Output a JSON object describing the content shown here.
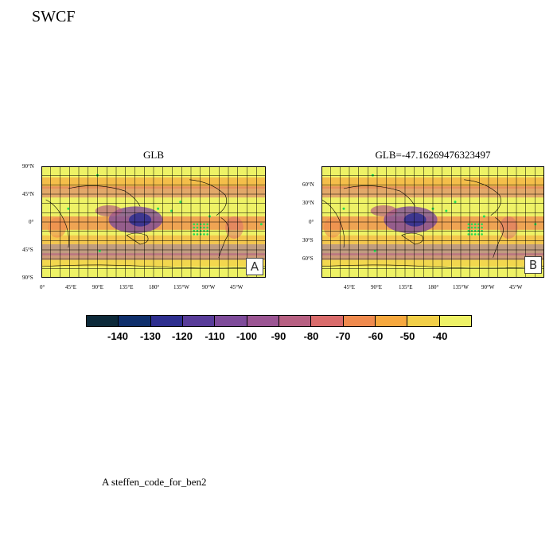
{
  "title": "SWCF",
  "panels": [
    {
      "title": "GLB",
      "letter": "A",
      "lat_ticks": [
        "90°N",
        "45°N",
        "0°",
        "45°S",
        "90°S"
      ],
      "lon_ticks": [
        "0°",
        "45°E",
        "90°E",
        "135°E",
        "180°",
        "135°W",
        "90°W",
        "45°W"
      ]
    },
    {
      "title": "GLB=-47.16269476323497",
      "letter": "B",
      "lat_ticks": [
        "60°N",
        "30°N",
        "0°",
        "30°S",
        "60°S"
      ],
      "lon_ticks": [
        "45°E",
        "90°E",
        "135°E",
        "180°",
        "135°W",
        "90°W",
        "45°W"
      ]
    }
  ],
  "colorbar": {
    "labels": [
      "-140",
      "-130",
      "-120",
      "-110",
      "-100",
      "-90",
      "-80",
      "-70",
      "-60",
      "-50",
      "-40"
    ],
    "colors": [
      "#0d2a3a",
      "#0f2f6b",
      "#2e2f8f",
      "#583c99",
      "#7e4b9a",
      "#9b5593",
      "#b76082",
      "#d96b6b",
      "#ef8a4e",
      "#f6a83e",
      "#f2cf48",
      "#eef266"
    ]
  },
  "footer": "A  steffen_code_for_ben2"
}
